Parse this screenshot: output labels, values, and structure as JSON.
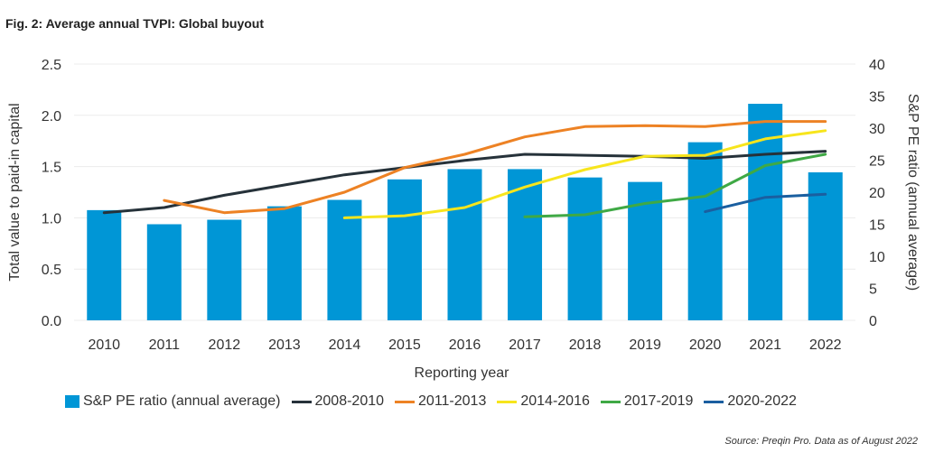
{
  "figure": {
    "title": "Fig. 2: Average annual TVPI: Global buyout",
    "source": "Source: Preqin Pro. Data as of August 2022"
  },
  "chart_data": {
    "type": "bar",
    "categories": [
      "2010",
      "2011",
      "2012",
      "2013",
      "2014",
      "2015",
      "2016",
      "2017",
      "2018",
      "2019",
      "2020",
      "2021",
      "2022"
    ],
    "xlabel": "Reporting year",
    "ylabel": "Total value to paid-in capital",
    "y2label": "S&P PE ratio (annual average)",
    "ylim": [
      0,
      2.5
    ],
    "y2lim": [
      0,
      40
    ],
    "yticks": [
      "0.0",
      "0.5",
      "1.0",
      "1.5",
      "2.0",
      "2.5"
    ],
    "y2ticks": [
      "0",
      "5",
      "10",
      "15",
      "20",
      "25",
      "30",
      "35",
      "40"
    ],
    "grid": true,
    "legend_position": "bottom",
    "bar_series": {
      "name": "S&P PE ratio (annual average)",
      "axis": "right",
      "color": "#0096d6",
      "values": [
        17.2,
        15.0,
        15.7,
        17.8,
        18.8,
        22.0,
        23.6,
        23.6,
        22.3,
        21.6,
        27.8,
        33.8,
        23.1
      ]
    },
    "line_series": [
      {
        "name": "2008-2010",
        "color": "#26323a",
        "values": [
          1.05,
          1.1,
          1.22,
          1.32,
          1.42,
          1.49,
          1.56,
          1.62,
          1.61,
          1.6,
          1.58,
          1.62,
          1.65
        ]
      },
      {
        "name": "2011-2013",
        "color": "#ed8224",
        "values": [
          null,
          1.17,
          1.05,
          1.09,
          1.25,
          1.49,
          1.62,
          1.79,
          1.89,
          1.9,
          1.89,
          1.94,
          1.94
        ]
      },
      {
        "name": "2014-2016",
        "color": "#f7e51c",
        "values": [
          null,
          null,
          null,
          null,
          1.0,
          1.02,
          1.1,
          1.3,
          1.47,
          1.6,
          1.61,
          1.77,
          1.85
        ]
      },
      {
        "name": "2017-2019",
        "color": "#3fa945",
        "values": [
          null,
          null,
          null,
          null,
          null,
          null,
          null,
          1.01,
          1.03,
          1.14,
          1.21,
          1.51,
          1.62
        ]
      },
      {
        "name": "2020-2022",
        "color": "#1a5fa0",
        "values": [
          null,
          null,
          null,
          null,
          null,
          null,
          null,
          null,
          null,
          null,
          1.06,
          1.2,
          1.23
        ]
      }
    ]
  }
}
